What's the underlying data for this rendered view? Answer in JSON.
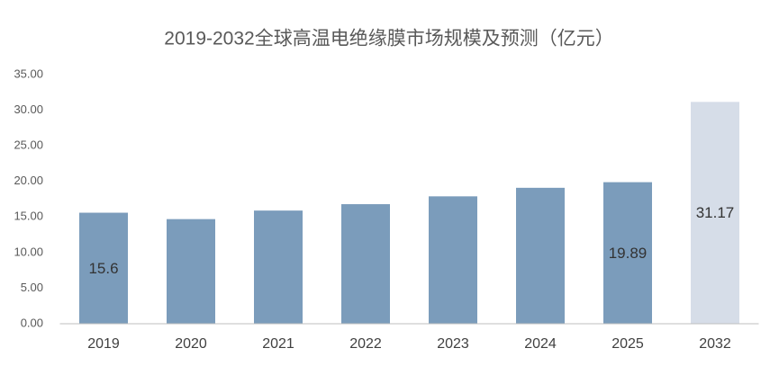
{
  "chart_data": {
    "type": "bar",
    "title": "2019-2032全球高温电绝缘膜市场规模及预测（亿元）",
    "categories": [
      "2019",
      "2020",
      "2021",
      "2022",
      "2023",
      "2024",
      "2025",
      "2032"
    ],
    "values": [
      15.6,
      14.7,
      15.9,
      16.8,
      17.9,
      19.1,
      19.89,
      31.17
    ],
    "value_labels": [
      "15.6",
      null,
      null,
      null,
      null,
      null,
      "19.89",
      "31.17"
    ],
    "colors": [
      "#7b9cbb",
      "#7b9cbb",
      "#7b9cbb",
      "#7b9cbb",
      "#7b9cbb",
      "#7b9cbb",
      "#7b9cbb",
      "#d6dde8"
    ],
    "ylim": [
      0,
      35
    ],
    "yticks": [
      {
        "value": 0,
        "label": "0.00"
      },
      {
        "value": 5,
        "label": "5.00"
      },
      {
        "value": 10,
        "label": "10.00"
      },
      {
        "value": 15,
        "label": "15.00"
      },
      {
        "value": 20,
        "label": "20.00"
      },
      {
        "value": 25,
        "label": "25.00"
      },
      {
        "value": 30,
        "label": "30.00"
      },
      {
        "value": 35,
        "label": "35.00"
      }
    ],
    "grid": false
  }
}
